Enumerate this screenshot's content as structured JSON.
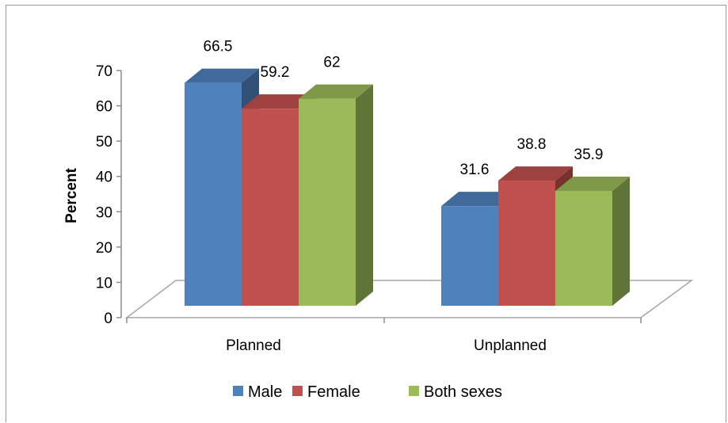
{
  "chart_data": {
    "type": "bar",
    "style": "3d-clustered-column",
    "categories": [
      "Planned",
      "Unplanned"
    ],
    "series": [
      {
        "name": "Male",
        "values": [
          66.5,
          31.6
        ],
        "color": "#4F81BD"
      },
      {
        "name": "Female",
        "values": [
          59.2,
          38.8
        ],
        "color": "#C0504D"
      },
      {
        "name": "Both sexes",
        "values": [
          62,
          35.9
        ],
        "color": "#9BBB59"
      }
    ],
    "data_labels": [
      [
        "66.5",
        "31.6"
      ],
      [
        "59.2",
        "38.8"
      ],
      [
        "62",
        "35.9"
      ]
    ],
    "ylabel": "Percent",
    "ylim": [
      0,
      70
    ],
    "yticks": [
      0,
      10,
      20,
      30,
      40,
      50,
      60,
      70
    ],
    "grid": false,
    "legend_position": "bottom"
  }
}
